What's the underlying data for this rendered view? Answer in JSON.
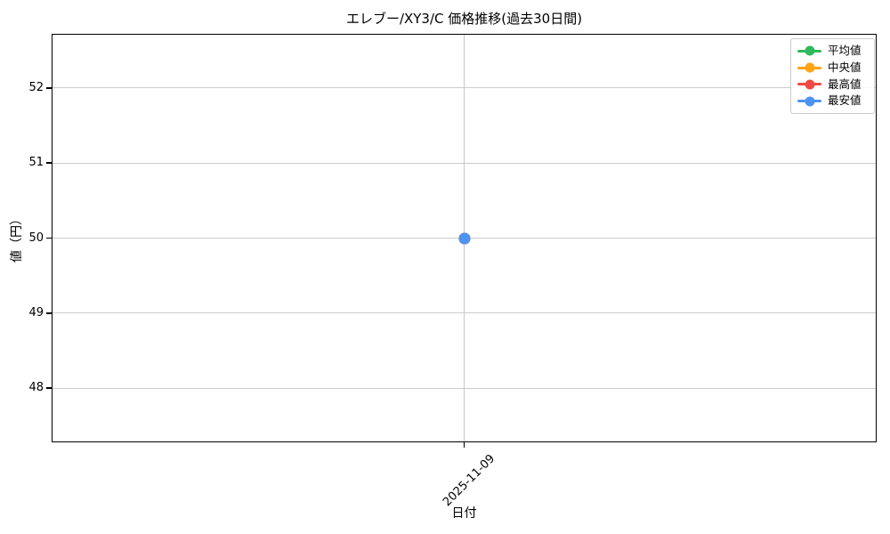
{
  "figure": {
    "title": "エレブー/XY3/C 価格推移(過去30日間)",
    "xlabel": "日付",
    "ylabel": "値（円）",
    "legend": [
      {
        "label": "平均値",
        "color": "#2eb95a"
      },
      {
        "label": "中央値",
        "color": "#ffa414"
      },
      {
        "label": "最高値",
        "color": "#f04943"
      },
      {
        "label": "最安値",
        "color": "#4d94f0"
      }
    ]
  },
  "chart_data": {
    "type": "line",
    "title": "エレブー/XY3/C 価格推移(過去30日間)",
    "xlabel": "日付",
    "ylabel": "値（円）",
    "x": [
      "2025-11-09"
    ],
    "series": [
      {
        "name": "平均値",
        "color": "#2eb95a",
        "values": [
          50
        ]
      },
      {
        "name": "中央値",
        "color": "#ffa414",
        "values": [
          50
        ]
      },
      {
        "name": "最高値",
        "color": "#f04943",
        "values": [
          50
        ]
      },
      {
        "name": "最安値",
        "color": "#4d94f0",
        "values": [
          50
        ]
      }
    ],
    "yticks": [
      48,
      49,
      50,
      51,
      52
    ],
    "ylim": [
      47.28,
      52.72
    ],
    "grid": true,
    "legend_position": "upper right",
    "note": "Single date on x-axis; all four series overlap at value 50, 最安値 marker drawn on top."
  }
}
